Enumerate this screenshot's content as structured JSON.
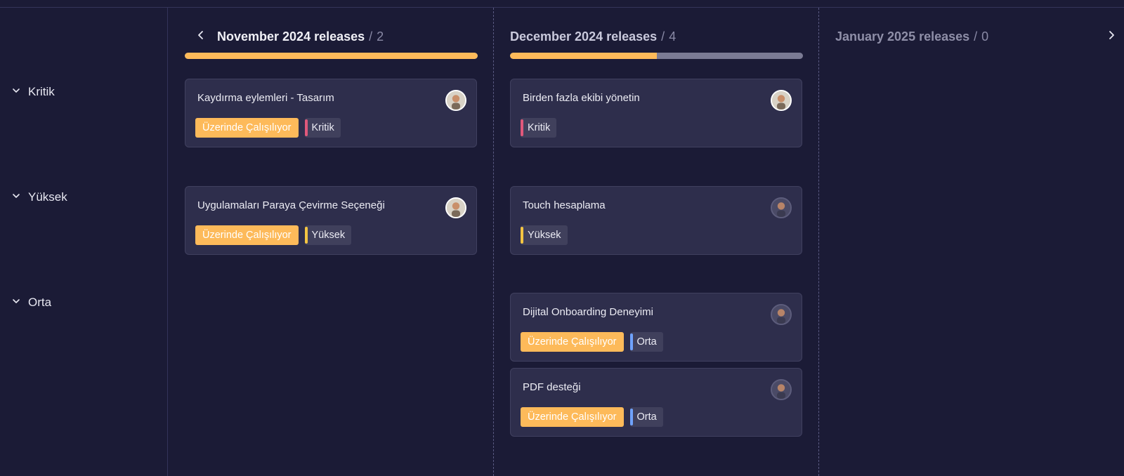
{
  "groups": [
    {
      "label": "Kritik"
    },
    {
      "label": "Yüksek"
    },
    {
      "label": "Orta"
    }
  ],
  "columns": [
    {
      "title": "November 2024 releases",
      "separator": "/",
      "count": "2",
      "progress": 1.0
    },
    {
      "title": "December 2024 releases",
      "separator": "/",
      "count": "4",
      "progress": 0.5
    },
    {
      "title": "January 2025 releases",
      "separator": "/",
      "count": "0"
    }
  ],
  "colors": {
    "status": "#fdba5a",
    "kritik": "#e0587b",
    "yuksek": "#f4c542",
    "orta": "#6fa2ff"
  },
  "icons": {
    "prev": "chevron-left-icon",
    "next": "chevron-right-icon",
    "group_toggle": "chevron-down-icon"
  },
  "cards": [
    {
      "title": "Kaydırma eylemleri - Tasarım",
      "status": "Üzerinde Çalışılıyor",
      "priority": "Kritik"
    },
    {
      "title": "Uygulamaları Paraya Çevirme Seçeneği",
      "status": "Üzerinde Çalışılıyor",
      "priority": "Yüksek"
    },
    {
      "title": "Birden fazla ekibi yönetin",
      "priority": "Kritik"
    },
    {
      "title": "Touch hesaplama",
      "priority": "Yüksek"
    },
    {
      "title": "Dijital Onboarding Deneyimi",
      "status": "Üzerinde Çalışılıyor",
      "priority": "Orta"
    },
    {
      "title": "PDF desteği",
      "status": "Üzerinde Çalışılıyor",
      "priority": "Orta"
    }
  ]
}
